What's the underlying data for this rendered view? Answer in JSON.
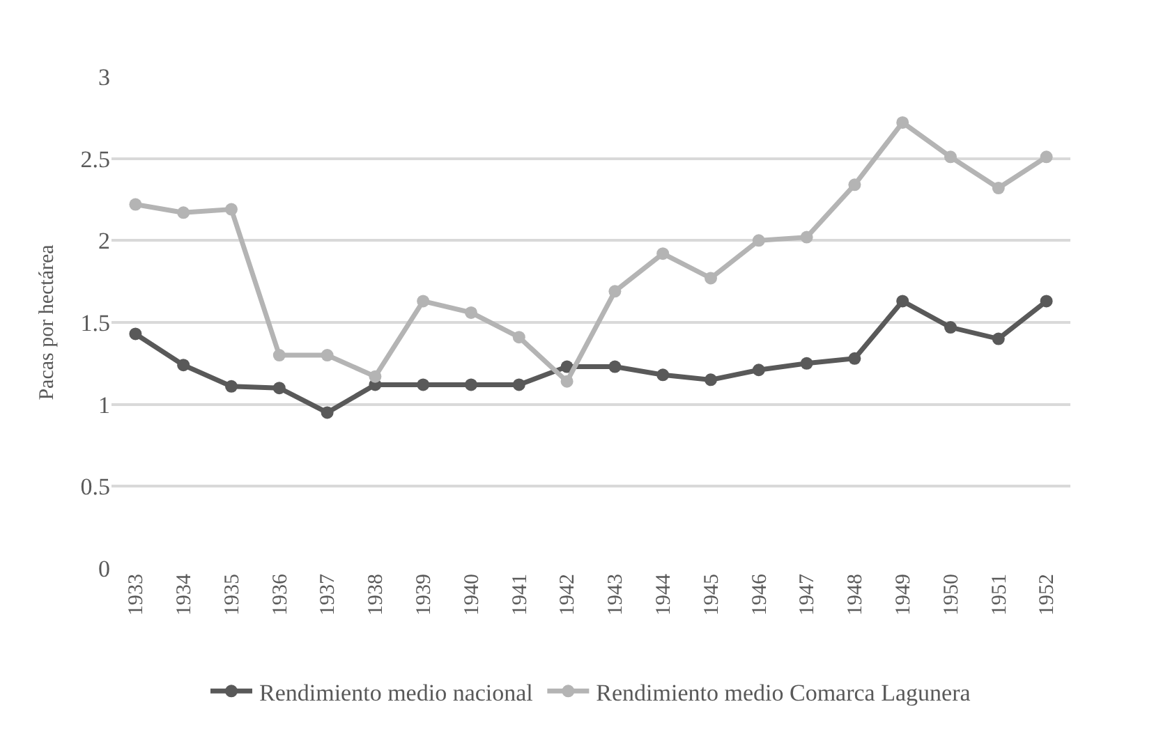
{
  "chart_data": {
    "type": "line",
    "ylabel": "Pacas por hectárea",
    "categories": [
      "1933",
      "1934",
      "1935",
      "1936",
      "1937",
      "1938",
      "1939",
      "1940",
      "1941",
      "1942",
      "1943",
      "1944",
      "1945",
      "1946",
      "1947",
      "1948",
      "1949",
      "1950",
      "1951",
      "1952"
    ],
    "series": [
      {
        "name": "Rendimiento medio nacional",
        "color": "#595959",
        "values": [
          1.43,
          1.24,
          1.11,
          1.1,
          0.95,
          1.12,
          1.12,
          1.12,
          1.12,
          1.23,
          1.23,
          1.18,
          1.15,
          1.21,
          1.25,
          1.28,
          1.63,
          1.47,
          1.4,
          1.63
        ]
      },
      {
        "name": "Rendimiento medio Comarca Lagunera",
        "color": "#b4b4b4",
        "values": [
          2.22,
          2.17,
          2.19,
          1.3,
          1.3,
          1.17,
          1.63,
          1.56,
          1.41,
          1.14,
          1.69,
          1.92,
          1.77,
          2.0,
          2.02,
          2.34,
          2.72,
          2.51,
          2.32,
          2.51
        ]
      }
    ],
    "ylim": [
      0,
      3
    ],
    "yticks": [
      0,
      0.5,
      1,
      1.5,
      2,
      2.5,
      3
    ],
    "grid": "y",
    "legend": "bottom",
    "marker": "circle",
    "line_style": "solid"
  }
}
